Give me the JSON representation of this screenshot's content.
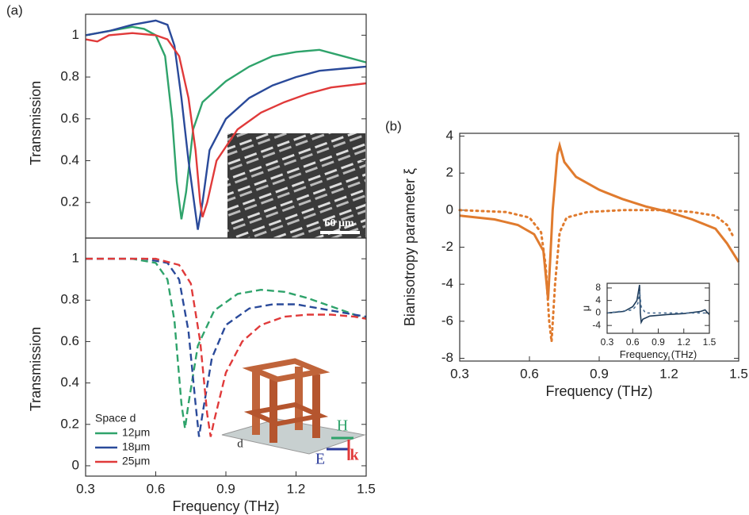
{
  "chart_data": [
    {
      "type": "line",
      "panel_label": "(a)",
      "ylabel": "Transmission",
      "xlim": [
        0.3,
        1.5
      ],
      "ylim": [
        0.03,
        1.1
      ],
      "yticks": [
        0.2,
        0.4,
        0.6,
        0.8,
        1
      ],
      "annotations": [
        "60 μm"
      ],
      "series": [
        {
          "name": "12μm",
          "color": "#2fa36b",
          "style": "solid",
          "x": [
            0.3,
            0.4,
            0.5,
            0.55,
            0.6,
            0.64,
            0.67,
            0.69,
            0.71,
            0.73,
            0.76,
            0.8,
            0.9,
            1.0,
            1.1,
            1.2,
            1.3,
            1.4,
            1.5
          ],
          "values": [
            1.0,
            1.02,
            1.04,
            1.03,
            1.0,
            0.9,
            0.6,
            0.3,
            0.12,
            0.25,
            0.55,
            0.68,
            0.78,
            0.85,
            0.9,
            0.92,
            0.93,
            0.9,
            0.87
          ]
        },
        {
          "name": "18μm",
          "color": "#2a4a9a",
          "style": "solid",
          "x": [
            0.3,
            0.4,
            0.5,
            0.6,
            0.65,
            0.68,
            0.71,
            0.74,
            0.77,
            0.78,
            0.8,
            0.83,
            0.9,
            1.0,
            1.1,
            1.2,
            1.3,
            1.4,
            1.5
          ],
          "values": [
            1.0,
            1.02,
            1.05,
            1.07,
            1.05,
            0.95,
            0.7,
            0.4,
            0.15,
            0.07,
            0.2,
            0.45,
            0.6,
            0.7,
            0.76,
            0.8,
            0.83,
            0.84,
            0.85
          ]
        },
        {
          "name": "25μm",
          "color": "#e03a3a",
          "style": "solid",
          "x": [
            0.3,
            0.35,
            0.4,
            0.5,
            0.6,
            0.65,
            0.7,
            0.74,
            0.77,
            0.79,
            0.8,
            0.82,
            0.86,
            0.95,
            1.05,
            1.15,
            1.25,
            1.35,
            1.5
          ],
          "values": [
            0.98,
            0.97,
            1.0,
            1.01,
            1.0,
            0.98,
            0.9,
            0.7,
            0.45,
            0.2,
            0.13,
            0.2,
            0.4,
            0.55,
            0.63,
            0.68,
            0.72,
            0.75,
            0.77
          ]
        }
      ]
    },
    {
      "type": "line",
      "xlabel": "Frequency (THz)",
      "ylabel": "Transmission",
      "xlim": [
        0.3,
        1.5
      ],
      "ylim": [
        -0.05,
        1.1
      ],
      "xticks": [
        0.3,
        0.6,
        0.9,
        1.2,
        1.5
      ],
      "yticks": [
        0,
        0.2,
        0.4,
        0.6,
        0.8,
        1
      ],
      "legend_title": "Space d",
      "legend": "lower left",
      "annotations": [
        "H",
        "E",
        "k",
        "d"
      ],
      "series": [
        {
          "name": "12μm",
          "color": "#2fa36b",
          "style": "dashed",
          "x": [
            0.3,
            0.5,
            0.6,
            0.65,
            0.68,
            0.71,
            0.725,
            0.74,
            0.78,
            0.85,
            0.95,
            1.05,
            1.15,
            1.25,
            1.35,
            1.5
          ],
          "values": [
            1.0,
            1.0,
            0.98,
            0.9,
            0.7,
            0.3,
            0.18,
            0.3,
            0.58,
            0.75,
            0.83,
            0.85,
            0.84,
            0.81,
            0.77,
            0.71
          ]
        },
        {
          "name": "18μm",
          "color": "#2a4a9a",
          "style": "dashed",
          "x": [
            0.3,
            0.55,
            0.65,
            0.7,
            0.74,
            0.77,
            0.785,
            0.8,
            0.84,
            0.9,
            1.0,
            1.1,
            1.2,
            1.3,
            1.4,
            1.5
          ],
          "values": [
            1.0,
            1.0,
            0.98,
            0.9,
            0.65,
            0.3,
            0.14,
            0.25,
            0.52,
            0.68,
            0.76,
            0.78,
            0.78,
            0.76,
            0.74,
            0.72
          ]
        },
        {
          "name": "25μm",
          "color": "#e03a3a",
          "style": "dashed",
          "x": [
            0.3,
            0.6,
            0.7,
            0.75,
            0.79,
            0.82,
            0.835,
            0.85,
            0.9,
            0.97,
            1.05,
            1.15,
            1.25,
            1.35,
            1.45,
            1.5
          ],
          "values": [
            1.0,
            1.0,
            0.97,
            0.88,
            0.6,
            0.25,
            0.14,
            0.22,
            0.45,
            0.6,
            0.68,
            0.72,
            0.73,
            0.73,
            0.72,
            0.71
          ]
        }
      ]
    },
    {
      "type": "line",
      "panel_label": "(b)",
      "xlabel": "Frequency (THz)",
      "ylabel": "Bianisotropy parameter ξ",
      "xlim": [
        0.3,
        1.5
      ],
      "ylim": [
        -8.15,
        4.15
      ],
      "xticks": [
        0.3,
        0.6,
        0.9,
        1.2,
        1.5
      ],
      "yticks": [
        4,
        2,
        0,
        -2,
        -4,
        -6,
        -8
      ],
      "series": [
        {
          "color": "#e07b2e",
          "style": "solid",
          "x": [
            0.3,
            0.45,
            0.55,
            0.62,
            0.66,
            0.68,
            0.69,
            0.7,
            0.71,
            0.72,
            0.73,
            0.75,
            0.8,
            0.9,
            1.0,
            1.1,
            1.2,
            1.3,
            1.4,
            1.45,
            1.5
          ],
          "values": [
            -0.3,
            -0.5,
            -0.8,
            -1.3,
            -2.2,
            -4.8,
            -2.5,
            0,
            1.5,
            3.0,
            3.5,
            2.6,
            1.8,
            1.1,
            0.6,
            0.2,
            -0.1,
            -0.5,
            -1.0,
            -1.8,
            -2.8
          ]
        },
        {
          "color": "#e07b2e",
          "style": "dotted",
          "x": [
            0.3,
            0.5,
            0.6,
            0.65,
            0.67,
            0.685,
            0.695,
            0.71,
            0.73,
            0.76,
            0.85,
            1.0,
            1.2,
            1.3,
            1.4,
            1.45,
            1.48
          ],
          "values": [
            0,
            -0.1,
            -0.4,
            -1.2,
            -3,
            -6,
            -7.1,
            -4,
            -1.2,
            -0.4,
            -0.1,
            0,
            0,
            -0.1,
            -0.3,
            -0.8,
            -1.5
          ]
        }
      ]
    },
    {
      "type": "line",
      "xlabel": "Frequency (THz)",
      "ylabel": "μ",
      "xlim": [
        0.3,
        1.5
      ],
      "ylim": [
        -6.5,
        9.5
      ],
      "xticks": [
        0.3,
        0.6,
        0.9,
        1.2,
        1.5
      ],
      "yticks": [
        8,
        4,
        0,
        -4
      ],
      "series": [
        {
          "color": "#1f3c5a",
          "style": "solid",
          "x": [
            0.3,
            0.5,
            0.6,
            0.65,
            0.68,
            0.69,
            0.7,
            0.72,
            0.8,
            1.0,
            1.2,
            1.4,
            1.45,
            1.48,
            1.5
          ],
          "values": [
            0,
            0.5,
            2,
            4,
            9,
            0,
            -3,
            -2,
            -1,
            -0.5,
            -0.2,
            0.5,
            1,
            0,
            -0.5
          ]
        },
        {
          "color": "#4a6f95",
          "style": "dotted",
          "x": [
            0.3,
            0.6,
            0.66,
            0.68,
            0.7,
            0.75,
            1.5
          ],
          "values": [
            0,
            1,
            3,
            7,
            2,
            0,
            0
          ]
        }
      ]
    }
  ]
}
